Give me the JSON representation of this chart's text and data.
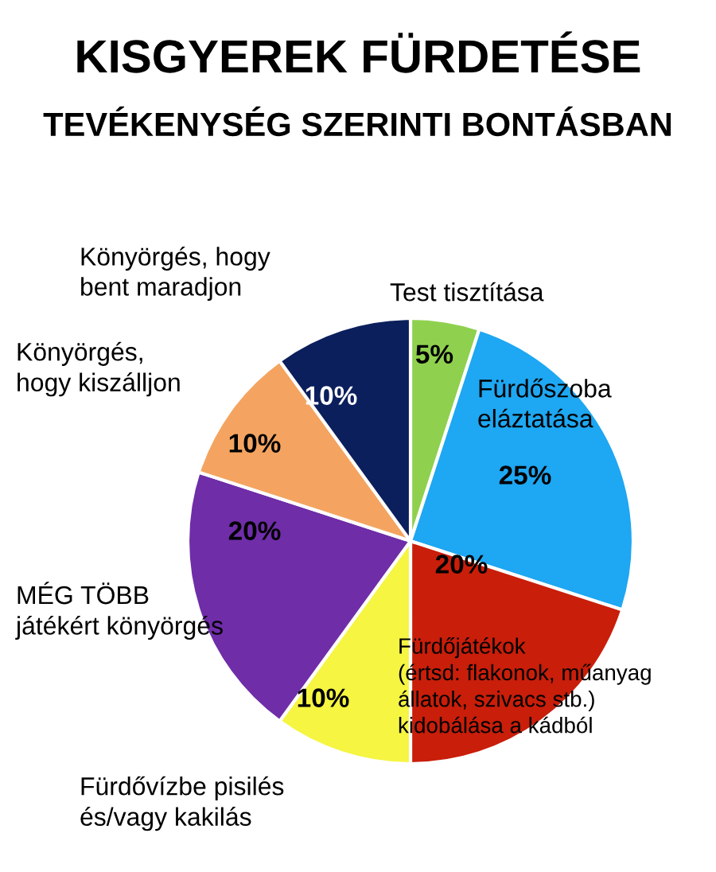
{
  "chart_data": {
    "type": "pie",
    "title": "KISGYEREK FÜRDETÉSE",
    "subtitle": "TEVÉKENYSÉG SZERINTI BONTÁSBAN",
    "categories": [
      "Test tisztítása",
      "Fürdőszoba\neláztatása",
      "Fürdőjátékok\n(értsd: flakonok, műanyag\nállatok, szivacs stb.)\nkidobálása a kádból",
      "Fürdővízbe pisilés\nés/vagy kakilás",
      "MÉG TÖBB\njátékért könyörgés",
      "Könyörgés,\nhogy kiszálljon",
      "Könyörgés, hogy\nbent maradjon"
    ],
    "values": [
      5,
      25,
      20,
      10,
      20,
      10,
      10
    ],
    "value_labels": [
      "5%",
      "25%",
      "20%",
      "10%",
      "20%",
      "10%",
      "10%"
    ],
    "colors": [
      "#8fd14f",
      "#1ea7f2",
      "#c81e0a",
      "#f5f542",
      "#6f2da8",
      "#f4a460",
      "#0b1f5c"
    ]
  }
}
